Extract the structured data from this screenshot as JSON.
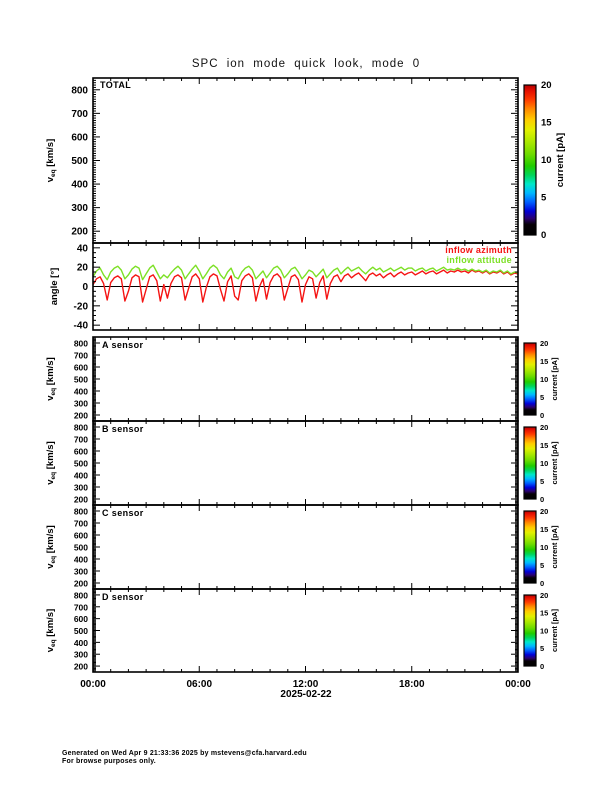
{
  "chart_data": {
    "type": "line",
    "title": "SPC ion mode quick look, mode 0",
    "x_axis": {
      "range_hours": [
        0,
        24
      ],
      "tick_hours": [
        0,
        6,
        12,
        18,
        24
      ],
      "tick_labels": [
        "00:00",
        "06:00",
        "12:00",
        "18:00",
        "00:00"
      ],
      "minor_tick_hours": 1,
      "date_label": "2025-02-22"
    },
    "velocity_axis": {
      "ylabel_pre": "v",
      "ylabel_sub": "eq",
      "ylabel_post": " [km/s]",
      "ylim": [
        150,
        850
      ],
      "yticks": [
        200,
        300,
        400,
        500,
        600,
        700,
        800
      ],
      "minor_step": 10
    },
    "velocity_panels": [
      {
        "label": "TOTAL",
        "series": []
      },
      {
        "label": "A sensor",
        "series": []
      },
      {
        "label": "B sensor",
        "series": []
      },
      {
        "label": "C sensor",
        "series": []
      },
      {
        "label": "D sensor",
        "series": []
      }
    ],
    "angle_panel": {
      "ylabel": "angle [°]",
      "ylim": [
        -45,
        45
      ],
      "yticks": [
        -40,
        -20,
        0,
        20,
        40
      ],
      "minor_step": 5,
      "zero_line": 0,
      "x_start": 0,
      "x_step": 0.2,
      "series": [
        {
          "name": "inflow azimuth",
          "color": "#f51413",
          "values": [
            2,
            8,
            10,
            3,
            -14,
            4,
            9,
            11,
            8,
            -15,
            -5,
            9,
            12,
            10,
            -16,
            -3,
            10,
            12,
            6,
            -15,
            2,
            -12,
            3,
            10,
            12,
            9,
            -14,
            -2,
            10,
            13,
            8,
            -16,
            -1,
            10,
            13,
            11,
            -3,
            -15,
            5,
            11,
            -10,
            -14,
            6,
            11,
            13,
            9,
            -15,
            0,
            8,
            -13,
            4,
            11,
            13,
            9,
            -14,
            -2,
            10,
            12,
            7,
            -16,
            2,
            10,
            8,
            -12,
            4,
            11,
            -13,
            3,
            10,
            12,
            5,
            11,
            13,
            9,
            12,
            14,
            10,
            6,
            12,
            14,
            11,
            13,
            9,
            12,
            14,
            10,
            13,
            15,
            12,
            14,
            15,
            12,
            14,
            16,
            13,
            15,
            16,
            13,
            15,
            17,
            14,
            16,
            15,
            17,
            15,
            16,
            14,
            17,
            15,
            16,
            14,
            16,
            13,
            15,
            14,
            16,
            13,
            15,
            12,
            14,
            13
          ]
        },
        {
          "name": "inflow attitude",
          "color": "#7de026",
          "values": [
            10,
            16,
            19,
            12,
            7,
            15,
            19,
            21,
            17,
            8,
            12,
            18,
            21,
            19,
            7,
            13,
            19,
            22,
            15,
            8,
            12,
            9,
            14,
            18,
            21,
            17,
            8,
            13,
            18,
            22,
            16,
            8,
            13,
            19,
            22,
            19,
            12,
            8,
            15,
            19,
            10,
            8,
            15,
            19,
            21,
            17,
            8,
            12,
            16,
            9,
            14,
            19,
            21,
            17,
            9,
            13,
            18,
            20,
            15,
            8,
            12,
            17,
            15,
            10,
            14,
            18,
            9,
            13,
            17,
            19,
            13,
            17,
            20,
            16,
            18,
            20,
            16,
            13,
            17,
            20,
            17,
            19,
            15,
            17,
            19,
            16,
            18,
            20,
            17,
            19,
            19,
            16,
            18,
            19,
            16,
            18,
            19,
            16,
            18,
            20,
            17,
            18,
            17,
            19,
            17,
            18,
            16,
            18,
            16,
            17,
            15,
            17,
            14,
            16,
            15,
            17,
            14,
            16,
            13,
            15,
            14
          ]
        }
      ]
    },
    "colorbar": {
      "label": "current [pA]",
      "range_pA": [
        0,
        20
      ],
      "ticks": [
        0,
        5,
        10,
        15,
        20
      ],
      "gradient_stops": [
        [
          0.0,
          "#000000"
        ],
        [
          0.07,
          "#050005"
        ],
        [
          0.11,
          "#2a0070"
        ],
        [
          0.16,
          "#0000d8"
        ],
        [
          0.22,
          "#0060ff"
        ],
        [
          0.28,
          "#00b8ff"
        ],
        [
          0.34,
          "#00e8c8"
        ],
        [
          0.4,
          "#00d458"
        ],
        [
          0.46,
          "#20cc00"
        ],
        [
          0.54,
          "#70dc00"
        ],
        [
          0.62,
          "#aae800"
        ],
        [
          0.7,
          "#e2f000"
        ],
        [
          0.77,
          "#ffcc00"
        ],
        [
          0.84,
          "#ff8800"
        ],
        [
          0.9,
          "#ff3c00"
        ],
        [
          0.96,
          "#e61000"
        ],
        [
          1.0,
          "#b40000"
        ]
      ]
    }
  },
  "footer": {
    "line1": "Generated on Wed Apr  9 21:33:36 2025 by mstevens@cfa.harvard.edu",
    "line2": "For browse purposes only."
  }
}
